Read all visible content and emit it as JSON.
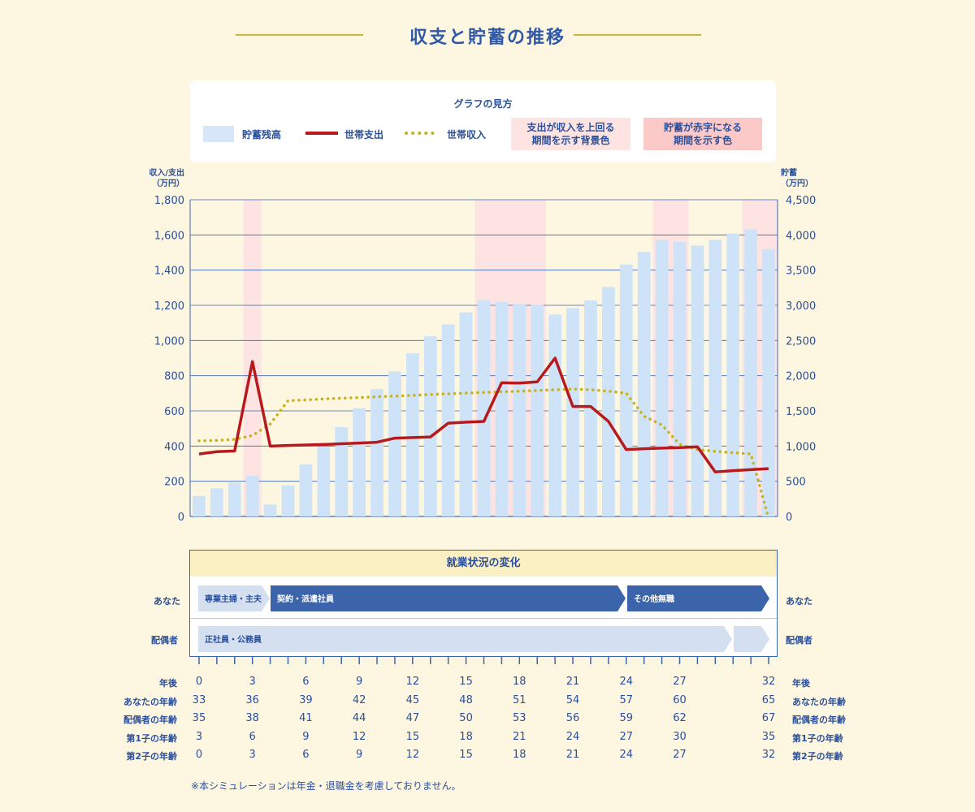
{
  "page": {
    "title": "収支と貯蓄の推移",
    "note": "※本シミュレーションは年金・退職金を考慮しておりません。"
  },
  "legend": {
    "title": "グラフの見方",
    "bar": "貯蓄残高",
    "expense": "世帯支出",
    "income": "世帯収入",
    "bg_overspend_line1": "支出が収入を上回る",
    "bg_overspend_line2": "期間を示す背景色",
    "bg_deficit_line1": "貯蓄が赤字になる",
    "bg_deficit_line2": "期間を示す色"
  },
  "colors": {
    "bar": "#cfe3f8",
    "expense": "#b8191c",
    "income": "#c8b21a",
    "overspend_bg": "#fde4e2",
    "grid": "#3a66b1",
    "text": "#2a4f9c"
  },
  "chart_data": {
    "type": "bar+line",
    "left_axis": {
      "label_line1": "収入/支出",
      "label_line2": "（万円）",
      "range": [
        0,
        1800
      ],
      "ticks": [
        "0",
        "200",
        "400",
        "600",
        "800",
        "1,000",
        "1,200",
        "1,400",
        "1,600",
        "1,800"
      ]
    },
    "right_axis": {
      "label_line1": "貯蓄",
      "label_line2": "（万円）",
      "range": [
        0,
        4500
      ],
      "ticks": [
        "0",
        "500",
        "1,000",
        "1,500",
        "2,000",
        "2,500",
        "3,000",
        "3,500",
        "4,000",
        "4,500"
      ]
    },
    "x_years": [
      0,
      1,
      2,
      3,
      4,
      5,
      6,
      7,
      8,
      9,
      10,
      11,
      12,
      13,
      14,
      15,
      16,
      17,
      18,
      19,
      20,
      21,
      22,
      23,
      24,
      25,
      26,
      27,
      28,
      29,
      30,
      31,
      32
    ],
    "savings": [
      290,
      400,
      480,
      580,
      170,
      440,
      740,
      990,
      1270,
      1540,
      1810,
      2060,
      2320,
      2560,
      2730,
      2900,
      3070,
      3050,
      3020,
      3010,
      2870,
      2960,
      3070,
      3260,
      3580,
      3760,
      3930,
      3900,
      3850,
      3930,
      4020,
      4080,
      3800
    ],
    "expense": [
      355,
      368,
      372,
      880,
      400,
      403,
      406,
      409,
      413,
      417,
      422,
      445,
      448,
      452,
      530,
      536,
      540,
      760,
      758,
      765,
      900,
      625,
      625,
      540,
      380,
      385,
      388,
      391,
      396,
      253,
      260,
      266,
      272
    ],
    "income": [
      430,
      432,
      438,
      460,
      525,
      658,
      662,
      668,
      672,
      676,
      680,
      684,
      688,
      693,
      697,
      701,
      705,
      708,
      712,
      716,
      720,
      724,
      720,
      712,
      700,
      570,
      520,
      410,
      380,
      370,
      362,
      355,
      -10
    ],
    "overspend_periods": [
      [
        3,
        3
      ],
      [
        16,
        19
      ],
      [
        26,
        27
      ],
      [
        31,
        32
      ]
    ],
    "grid": true
  },
  "employment": {
    "title": "就業状況の変化",
    "you_label": "あなた",
    "spouse_label": "配偶者",
    "you_bars": [
      "専業主婦・主夫",
      "契約・派遣社員",
      "その他無職"
    ],
    "spouse_bars": [
      "正社員・公務員",
      ""
    ]
  },
  "table": {
    "rows": [
      {
        "label": "年後",
        "values": [
          "0",
          "3",
          "6",
          "9",
          "12",
          "15",
          "18",
          "21",
          "24",
          "27",
          "32"
        ]
      },
      {
        "label": "あなたの年齢",
        "values": [
          "33",
          "36",
          "39",
          "42",
          "45",
          "48",
          "51",
          "54",
          "57",
          "60",
          "65"
        ]
      },
      {
        "label": "配偶者の年齢",
        "values": [
          "35",
          "38",
          "41",
          "44",
          "47",
          "50",
          "53",
          "56",
          "59",
          "62",
          "67"
        ]
      },
      {
        "label": "第1子の年齢",
        "values": [
          "3",
          "6",
          "9",
          "12",
          "15",
          "18",
          "21",
          "24",
          "27",
          "30",
          "35"
        ]
      },
      {
        "label": "第2子の年齢",
        "values": [
          "0",
          "3",
          "6",
          "9",
          "12",
          "15",
          "18",
          "21",
          "24",
          "27",
          "32"
        ]
      }
    ]
  }
}
